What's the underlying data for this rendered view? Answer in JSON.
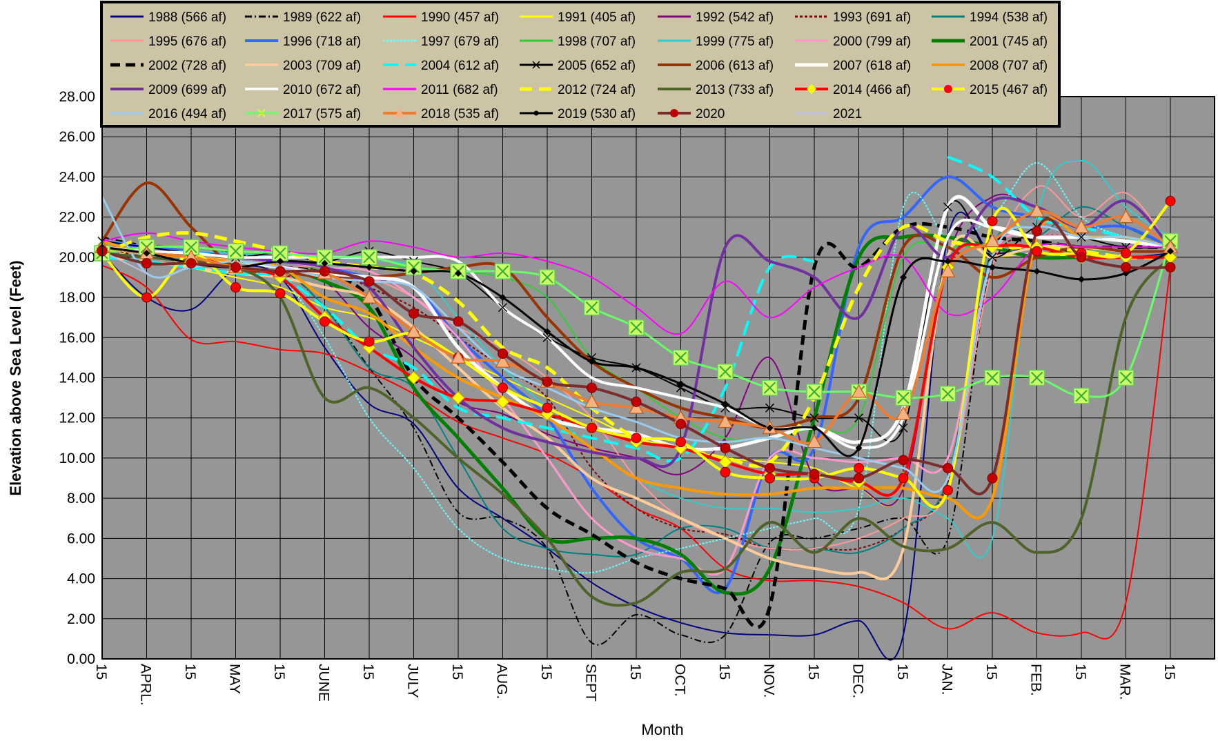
{
  "chart_data": {
    "type": "line",
    "title": "",
    "xlabel": "Month",
    "ylabel": "Elevation above Sea Level (Feet)",
    "ylim": [
      0,
      28
    ],
    "yticks": [
      "0.00",
      "2.00",
      "4.00",
      "6.00",
      "8.00",
      "10.00",
      "12.00",
      "14.00",
      "16.00",
      "18.00",
      "20.00",
      "22.00",
      "24.00",
      "26.00",
      "28.00"
    ],
    "x": [
      "15",
      "APRL.",
      "15",
      "MAY",
      "15",
      "JUNE",
      "15",
      "JULY",
      "15",
      "AUG.",
      "15",
      "SEPT",
      "15",
      "OCT.",
      "15",
      "NOV.",
      "15",
      "DEC.",
      "15",
      "JAN.",
      "15",
      "FEB.",
      "15",
      "MAR.",
      "15"
    ],
    "grid": true,
    "legend_position": "top",
    "plot_background": "#969696",
    "legend_background": "#cdc4a5",
    "series": [
      {
        "name": "1988  (566 af)",
        "color": "#000080",
        "values": [
          20.2,
          18.0,
          17.4,
          19.4,
          19.0,
          15.5,
          12.7,
          11.7,
          8.5,
          7.0,
          5.5,
          3.8,
          2.6,
          1.8,
          1.3,
          1.2,
          1.2,
          1.9,
          1.2,
          21.0,
          20.2,
          20.5,
          20.2,
          20.0,
          20.2
        ]
      },
      {
        "name": "1989  (622 af)",
        "color": "#000000",
        "values": [
          21.0,
          20.6,
          20.5,
          20.2,
          19.5,
          17.5,
          14.5,
          11.5,
          7.3,
          7.0,
          5.5,
          0.8,
          2.2,
          1.2,
          1.2,
          5.8,
          6.0,
          6.5,
          7.0,
          6.0,
          20.0,
          21.0,
          21.0,
          21.0,
          20.5
        ]
      },
      {
        "name": "1990  (457 af)",
        "color": "#ff0000",
        "values": [
          19.6,
          18.5,
          15.9,
          15.8,
          15.4,
          15.2,
          14.3,
          13.2,
          11.8,
          11.0,
          10.2,
          9.0,
          7.5,
          6.5,
          4.5,
          3.9,
          3.9,
          3.6,
          2.8,
          1.5,
          2.3,
          1.3,
          1.3,
          2.8,
          19.5
        ]
      },
      {
        "name": "1991  (405 af)",
        "color": "#ffff00",
        "values": [
          20.0,
          20.3,
          19.5,
          19.0,
          18.5,
          17.5,
          17.0,
          16.0,
          15.0,
          14.0,
          13.0,
          12.0,
          11.0,
          10.5,
          10.0,
          9.8,
          9.5,
          8.5,
          8.5,
          20.0,
          20.0,
          20.2,
          20.0,
          20.0,
          20.0
        ]
      },
      {
        "name": "1992  (542 af)",
        "color": "#800080",
        "values": [
          20.5,
          20.2,
          20.0,
          19.8,
          19.5,
          18.8,
          16.5,
          15.0,
          12.8,
          12.2,
          11.2,
          10.5,
          10.0,
          9.2,
          11.0,
          15.0,
          9.0,
          8.5,
          8.5,
          20.0,
          23.0,
          22.5,
          21.5,
          22.0,
          20.5
        ]
      },
      {
        "name": "1993  (691 af)",
        "color": "#800000",
        "values": [
          20.5,
          20.0,
          19.8,
          19.5,
          19.0,
          19.5,
          18.5,
          17.5,
          16.0,
          14.5,
          13.0,
          9.5,
          7.5,
          6.5,
          6.2,
          5.5,
          5.5,
          5.5,
          6.5,
          8.8,
          19.5,
          21.0,
          21.0,
          21.0,
          20.5
        ]
      },
      {
        "name": "1994  (538 af)",
        "color": "#008080",
        "values": [
          20.5,
          20.3,
          20.0,
          19.8,
          19.5,
          17.5,
          14.5,
          13.5,
          10.0,
          6.5,
          5.5,
          5.2,
          5.2,
          6.5,
          6.5,
          5.5,
          5.5,
          5.3,
          6.5,
          9.0,
          20.5,
          21.0,
          22.5,
          21.5,
          20.5
        ]
      },
      {
        "name": "1995  (676 af)",
        "color": "#ff9999",
        "values": [
          20.5,
          20.3,
          20.0,
          19.8,
          19.5,
          19.5,
          19.0,
          18.0,
          16.5,
          15.5,
          14.0,
          12.0,
          9.0,
          7.0,
          6.0,
          5.5,
          5.5,
          6.0,
          7.0,
          8.5,
          19.5,
          23.5,
          22.0,
          23.2,
          20.5
        ]
      },
      {
        "name": "1996  (718 af)",
        "color": "#3366ff",
        "values": [
          20.8,
          20.5,
          20.3,
          20.0,
          19.8,
          19.5,
          19.0,
          18.5,
          16.0,
          14.0,
          12.0,
          8.5,
          6.0,
          5.0,
          3.5,
          10.0,
          10.5,
          20.5,
          22.0,
          24.0,
          22.5,
          22.0,
          21.5,
          21.5,
          20.5
        ]
      },
      {
        "name": "1997  (679 af)",
        "color": "#66ffff",
        "values": [
          20.0,
          19.8,
          19.5,
          19.2,
          19.0,
          16.0,
          12.0,
          9.5,
          6.5,
          5.0,
          4.5,
          4.3,
          5.0,
          5.5,
          6.0,
          6.5,
          7.0,
          7.5,
          22.5,
          21.0,
          22.0,
          24.7,
          22.0,
          21.0,
          20.5
        ]
      },
      {
        "name": "1998  (707 af)",
        "color": "#33cc33",
        "values": [
          20.5,
          20.3,
          20.0,
          19.8,
          19.5,
          19.5,
          19.5,
          19.5,
          19.3,
          19.0,
          18.0,
          15.0,
          13.5,
          12.0,
          11.0,
          11.0,
          11.5,
          12.0,
          20.0,
          20.5,
          20.5,
          20.5,
          20.3,
          20.3,
          20.3
        ]
      },
      {
        "name": "1999  (775 af)",
        "color": "#33cccc",
        "values": [
          20.5,
          20.3,
          20.3,
          20.2,
          20.0,
          20.0,
          19.8,
          19.5,
          17.0,
          14.5,
          12.5,
          10.5,
          9.0,
          8.0,
          7.5,
          7.5,
          7.3,
          7.5,
          8.0,
          7.0,
          6.0,
          22.0,
          24.8,
          22.5,
          21.0
        ]
      },
      {
        "name": "2000  (799 af)",
        "color": "#ff99cc",
        "values": [
          20.5,
          20.3,
          20.2,
          20.0,
          19.8,
          19.5,
          19.3,
          18.0,
          16.0,
          13.0,
          10.0,
          7.0,
          5.5,
          5.0,
          4.5,
          10.0,
          10.0,
          9.8,
          10.0,
          10.0,
          20.0,
          21.0,
          21.0,
          21.0,
          20.5
        ]
      },
      {
        "name": "2001  (745 af)",
        "color": "#008000",
        "values": [
          20.5,
          20.2,
          20.0,
          19.8,
          19.5,
          18.8,
          17.5,
          13.5,
          11.0,
          8.5,
          6.0,
          6.0,
          6.0,
          5.2,
          3.3,
          4.5,
          12.0,
          20.0,
          21.0,
          21.0,
          20.5,
          20.0,
          20.0,
          20.0,
          20.0
        ]
      },
      {
        "name": "2002  (728 af)",
        "color": "#000000",
        "values": [
          20.5,
          20.2,
          20.0,
          19.8,
          19.5,
          19.2,
          18.0,
          14.0,
          12.0,
          9.8,
          7.5,
          6.2,
          4.8,
          4.0,
          3.5,
          2.6,
          19.5,
          19.5,
          21.5,
          21.5,
          21.0,
          20.8,
          20.5,
          20.5,
          20.5
        ]
      },
      {
        "name": "2003  (709 af)",
        "color": "#ffcc99",
        "values": [
          20.0,
          19.8,
          19.5,
          19.2,
          19.0,
          18.5,
          18.0,
          16.5,
          14.5,
          12.5,
          11.0,
          9.0,
          8.0,
          7.0,
          6.0,
          5.0,
          4.5,
          4.3,
          5.5,
          20.0,
          20.0,
          20.5,
          20.5,
          20.3,
          20.3
        ]
      },
      {
        "name": "2004  (612 af)",
        "color": "#00ffff",
        "values": [
          20.0,
          19.8,
          19.5,
          19.2,
          19.0,
          17.5,
          15.5,
          14.5,
          12.5,
          12.0,
          11.5,
          11.0,
          10.5,
          10.0,
          13.5,
          19.5,
          19.8,
          null,
          null,
          25.0,
          24.0,
          22.0,
          21.5,
          21.0,
          20.5
        ]
      },
      {
        "name": "2005  (652 af)",
        "color": "#000000",
        "values": [
          20.8,
          20.5,
          20.2,
          20.0,
          20.2,
          19.8,
          20.3,
          19.8,
          19.2,
          17.5,
          16.0,
          15.0,
          14.5,
          13.5,
          12.5,
          12.5,
          12.0,
          12.0,
          11.5,
          22.5,
          20.0,
          21.5,
          21.0,
          20.5,
          20.5
        ]
      },
      {
        "name": "2006  (613 af)",
        "color": "#993300",
        "values": [
          20.8,
          23.7,
          21.5,
          19.5,
          19.3,
          19.0,
          19.0,
          19.2,
          19.5,
          19.5,
          17.0,
          14.8,
          13.5,
          12.5,
          12.0,
          11.5,
          12.0,
          13.0,
          20.5,
          20.5,
          19.0,
          20.0,
          20.5,
          20.3,
          20.3
        ]
      },
      {
        "name": "2007  (618 af)",
        "color": "#ffffff",
        "values": [
          20.5,
          20.2,
          20.0,
          19.8,
          19.5,
          19.2,
          19.0,
          18.5,
          15.5,
          13.5,
          12.0,
          11.5,
          11.2,
          10.5,
          10.5,
          11.0,
          11.5,
          10.8,
          12.5,
          22.5,
          21.5,
          21.0,
          21.0,
          20.8,
          20.5
        ]
      },
      {
        "name": "2008  (707 af)",
        "color": "#ff9900",
        "values": [
          20.8,
          20.2,
          20.0,
          19.8,
          19.5,
          18.0,
          17.2,
          15.5,
          14.0,
          13.0,
          12.0,
          10.5,
          9.0,
          8.5,
          8.2,
          8.2,
          8.5,
          8.5,
          8.5,
          8.0,
          8.0,
          21.0,
          21.0,
          21.0,
          20.5
        ]
      },
      {
        "name": "2009  (699 af)",
        "color": "#7030a0",
        "values": [
          20.5,
          20.3,
          20.2,
          20.0,
          19.8,
          19.5,
          18.5,
          15.5,
          13.0,
          11.5,
          10.8,
          10.3,
          10.0,
          10.5,
          20.5,
          19.8,
          19.0,
          17.0,
          21.5,
          20.0,
          22.8,
          22.5,
          21.5,
          22.8,
          20.5
        ]
      },
      {
        "name": "2010  (672 af)",
        "color": "#ffffff",
        "values": [
          20.5,
          20.3,
          20.2,
          20.0,
          20.0,
          20.0,
          20.0,
          20.0,
          19.8,
          17.5,
          16.0,
          14.0,
          13.5,
          13.0,
          12.5,
          11.5,
          11.5,
          10.5,
          12.0,
          21.0,
          21.5,
          21.0,
          21.0,
          20.8,
          20.5
        ]
      },
      {
        "name": "2011  (682 af)",
        "color": "#ff00ff",
        "values": [
          20.8,
          21.2,
          20.8,
          20.5,
          20.3,
          20.2,
          20.8,
          20.5,
          20.0,
          20.2,
          19.8,
          19.0,
          17.5,
          16.2,
          18.8,
          17.0,
          18.5,
          19.5,
          20.0,
          17.2,
          18.0,
          20.5,
          20.5,
          20.5,
          20.5
        ]
      },
      {
        "name": "2012  (724 af)",
        "color": "#ffff00",
        "values": [
          20.2,
          21.0,
          21.2,
          20.8,
          20.3,
          19.8,
          19.5,
          19.2,
          17.8,
          15.5,
          14.5,
          12.5,
          11.0,
          10.5,
          10.0,
          9.8,
          13.0,
          18.5,
          21.5,
          20.8,
          20.5,
          20.5,
          20.3,
          20.0,
          20.0
        ]
      },
      {
        "name": "2013  (733 af)",
        "color": "#4f6228",
        "values": [
          20.2,
          20.0,
          19.8,
          19.5,
          18.0,
          13.0,
          13.5,
          12.0,
          10.0,
          8.2,
          6.0,
          3.1,
          2.8,
          4.3,
          4.5,
          6.8,
          5.3,
          7.0,
          5.6,
          5.5,
          6.8,
          5.3,
          7.0,
          17.0,
          20.0
        ]
      },
      {
        "name": "2014 (466 af)",
        "color": "#ff0000",
        "values": [
          20.5,
          20.2,
          20.0,
          19.5,
          19.0,
          17.0,
          15.5,
          14.0,
          13.0,
          12.8,
          12.2,
          11.5,
          10.8,
          10.5,
          9.8,
          9.2,
          9.2,
          8.8,
          9.0,
          19.5,
          20.5,
          20.5,
          20.0,
          20.0,
          20.0
        ]
      },
      {
        "name": "2015 (467 af)",
        "color": "#ffff00",
        "values": [
          20.2,
          18.0,
          20.2,
          18.5,
          18.2,
          16.8,
          15.8,
          16.2,
          15.0,
          13.5,
          12.5,
          11.5,
          11.0,
          10.8,
          9.3,
          9.0,
          9.0,
          9.5,
          9.0,
          8.4,
          21.8,
          20.3,
          20.2,
          20.2,
          22.8
        ]
      },
      {
        "name": "2016 (494 af)",
        "color": "#99ccee",
        "values": [
          23.0,
          19.2,
          19.5,
          19.8,
          19.5,
          19.0,
          18.8,
          18.5,
          16.5,
          14.5,
          13.5,
          12.5,
          11.8,
          11.0,
          10.8,
          11.0,
          10.5,
          10.0,
          9.5,
          9.0,
          20.0,
          21.5,
          21.0,
          21.0,
          20.5
        ]
      },
      {
        "name": "2017 (575 af)",
        "color": "#66ff66",
        "values": [
          20.2,
          20.5,
          20.5,
          20.3,
          20.2,
          20.0,
          20.0,
          19.5,
          19.3,
          19.3,
          19.0,
          17.5,
          16.5,
          15.0,
          14.3,
          13.5,
          13.3,
          13.3,
          13.0,
          13.2,
          14.0,
          14.0,
          13.1,
          14.0,
          20.8
        ]
      },
      {
        "name": "2018 (535 af)",
        "color": "#ed7d31",
        "values": [
          20.5,
          20.2,
          20.0,
          19.5,
          19.3,
          19.2,
          18.0,
          16.3,
          15.0,
          14.8,
          13.8,
          12.8,
          12.5,
          12.0,
          11.8,
          11.5,
          10.8,
          13.3,
          12.2,
          19.3,
          20.8,
          22.3,
          21.5,
          22.0,
          20.5
        ]
      },
      {
        "name": "2019 (530 af)",
        "color": "#000000",
        "values": [
          20.5,
          20.2,
          19.7,
          19.5,
          19.8,
          19.7,
          19.5,
          19.3,
          19.2,
          18.0,
          16.3,
          14.8,
          14.5,
          13.7,
          12.7,
          11.5,
          11.5,
          10.5,
          19.0,
          19.8,
          19.5,
          19.3,
          18.9,
          19.2,
          20.3
        ]
      },
      {
        "name": "2020",
        "color": "#7b2c2c",
        "values": [
          20.3,
          19.7,
          19.7,
          19.5,
          19.3,
          19.3,
          18.8,
          17.2,
          16.8,
          15.2,
          13.8,
          13.5,
          12.8,
          11.7,
          10.5,
          9.5,
          9.2,
          9.0,
          9.9,
          9.5,
          9.0,
          21.3,
          20.0,
          19.5,
          19.5
        ]
      },
      {
        "name": "2021",
        "color": "#bfbfdf",
        "values": [
          20.3,
          19.2,
          null,
          null,
          null,
          null,
          null,
          null,
          null,
          null,
          null,
          null,
          null,
          null,
          null,
          null,
          null,
          null,
          null,
          null,
          null,
          null,
          null,
          null,
          null
        ]
      }
    ]
  }
}
